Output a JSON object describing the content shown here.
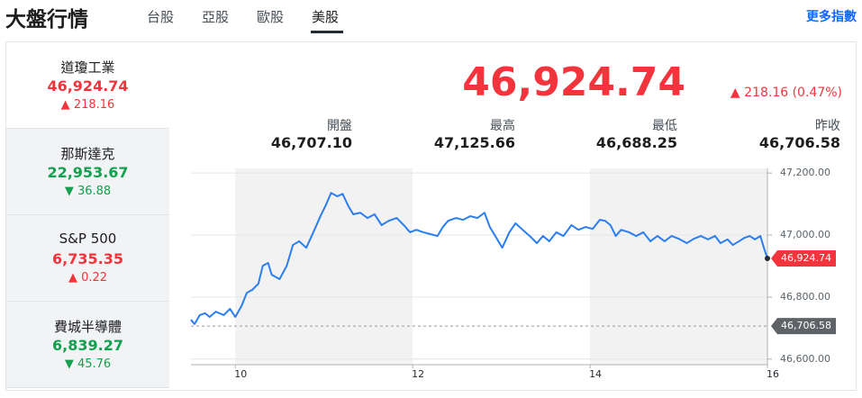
{
  "header": {
    "title": "大盤行情",
    "tabs": [
      "台股",
      "亞股",
      "歐股",
      "美股"
    ],
    "active_tab": 3,
    "more_link": "更多指數"
  },
  "sidebar": {
    "selected": 0,
    "items": [
      {
        "name": "道瓊工業",
        "price": "46,924.74",
        "arrow": "▲",
        "change": "218.16",
        "color": "#f4343c"
      },
      {
        "name": "那斯達克",
        "price": "22,953.67",
        "arrow": "▼",
        "change": "36.88",
        "color": "#13a04f"
      },
      {
        "name": "S&P 500",
        "price": "6,735.35",
        "arrow": "▲",
        "change": "0.22",
        "color": "#f4343c"
      },
      {
        "name": "費城半導體",
        "price": "6,839.27",
        "arrow": "▼",
        "change": "45.76",
        "color": "#13a04f"
      }
    ]
  },
  "quote": {
    "price": "46,924.74",
    "arrow": "▲",
    "change": "218.16 (0.47%)",
    "color": "#f4343c",
    "stats": [
      {
        "label": "開盤",
        "value": "46,707.10"
      },
      {
        "label": "最高",
        "value": "47,125.66"
      },
      {
        "label": "最低",
        "value": "46,688.25"
      },
      {
        "label": "昨收",
        "value": "46,706.58"
      }
    ]
  },
  "chart_data": {
    "type": "line",
    "color": "#2b7ef0",
    "x": [
      9.5,
      9.54,
      9.6,
      9.66,
      9.71,
      9.78,
      9.87,
      9.94,
      10.0,
      10.07,
      10.13,
      10.19,
      10.26,
      10.31,
      10.37,
      10.41,
      10.5,
      10.58,
      10.65,
      10.72,
      10.8,
      10.88,
      10.96,
      11.02,
      11.08,
      11.15,
      11.21,
      11.27,
      11.33,
      11.41,
      11.49,
      11.57,
      11.65,
      11.73,
      11.82,
      11.9,
      11.97,
      12.04,
      12.12,
      12.2,
      12.28,
      12.34,
      12.4,
      12.49,
      12.57,
      12.65,
      12.73,
      12.81,
      12.87,
      12.95,
      13.01,
      13.09,
      13.16,
      13.24,
      13.32,
      13.4,
      13.47,
      13.54,
      13.62,
      13.7,
      13.79,
      13.87,
      13.95,
      14.03,
      14.11,
      14.17,
      14.23,
      14.29,
      14.35,
      14.44,
      14.52,
      14.6,
      14.68,
      14.76,
      14.84,
      14.92,
      15.0,
      15.09,
      15.17,
      15.25,
      15.33,
      15.41,
      15.47,
      15.55,
      15.61,
      15.68,
      15.74,
      15.8,
      15.86,
      15.92,
      15.96,
      16.0
    ],
    "values": [
      46727,
      46713,
      46742,
      46748,
      46736,
      46753,
      46742,
      46762,
      46736,
      46771,
      46814,
      46823,
      46843,
      46901,
      46910,
      46872,
      46858,
      46901,
      46968,
      46980,
      46959,
      47009,
      47061,
      47096,
      47136,
      47125,
      47133,
      47096,
      47067,
      47072,
      47055,
      47067,
      47032,
      47046,
      47055,
      47032,
      47009,
      47017,
      47009,
      47003,
      46997,
      47026,
      47046,
      47055,
      47049,
      47061,
      47055,
      47072,
      47026,
      46988,
      46959,
      47009,
      47038,
      47017,
      46997,
      46974,
      46997,
      46980,
      47009,
      46997,
      47032,
      47017,
      47026,
      47020,
      47049,
      47046,
      47032,
      46997,
      47017,
      47009,
      46997,
      47009,
      46980,
      46997,
      46980,
      46997,
      46988,
      46974,
      46988,
      46997,
      46986,
      46997,
      46974,
      46986,
      46968,
      46980,
      46991,
      46997,
      46986,
      46997,
      46959,
      46924.74
    ],
    "xlim": [
      9.5,
      16
    ],
    "xticks": [
      10,
      12,
      14,
      16
    ],
    "ylim": [
      46582,
      47215
    ],
    "yticks": [
      {
        "value": 46600,
        "label": "46,600.00"
      },
      {
        "value": 46800,
        "label": "46,800.00"
      },
      {
        "value": 47000,
        "label": "47,000.00"
      },
      {
        "value": 47200,
        "label": "47,200.00"
      }
    ],
    "reference_line": 46706.58,
    "grid": true
  }
}
